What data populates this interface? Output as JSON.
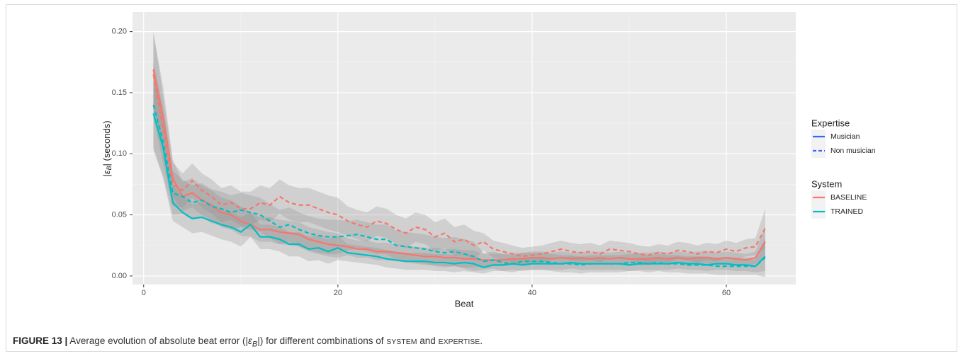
{
  "chart_data": {
    "type": "line",
    "ylabel": [
      "|",
      "ε",
      "B",
      "| (seconds)"
    ],
    "xlabel": "Beat",
    "x": [
      1,
      2,
      3,
      4,
      5,
      6,
      7,
      8,
      9,
      10,
      11,
      12,
      13,
      14,
      15,
      16,
      17,
      18,
      19,
      20,
      21,
      22,
      23,
      24,
      25,
      26,
      27,
      28,
      29,
      30,
      31,
      32,
      33,
      34,
      35,
      36,
      37,
      38,
      39,
      40,
      41,
      42,
      43,
      44,
      45,
      46,
      47,
      48,
      49,
      50,
      51,
      52,
      53,
      54,
      55,
      56,
      57,
      58,
      59,
      60,
      61,
      62,
      63,
      64
    ],
    "xlim": [
      -1.15,
      67.15
    ],
    "ylim": [
      -0.007,
      0.216
    ],
    "xticks": [
      0,
      20,
      40,
      60
    ],
    "yticks": [
      {
        "value": 0,
        "label": "0.00"
      },
      {
        "value": 0.05,
        "label": "0.05"
      },
      {
        "value": 0.1,
        "label": "0.10"
      },
      {
        "value": 0.15,
        "label": "0.15"
      },
      {
        "value": 0.2,
        "label": "0.20"
      }
    ],
    "minor_xticks": [
      10,
      30,
      50
    ],
    "minor_yticks": [
      0.025,
      0.075,
      0.125,
      0.175
    ],
    "grid": true,
    "band_color": "#8c8c8c",
    "series": [
      {
        "color": "#f8766d",
        "dash": false,
        "values": [
          0.169,
          0.13,
          0.08,
          0.065,
          0.068,
          0.062,
          0.058,
          0.052,
          0.05,
          0.045,
          0.042,
          0.038,
          0.038,
          0.036,
          0.035,
          0.034,
          0.03,
          0.028,
          0.026,
          0.025,
          0.024,
          0.022,
          0.022,
          0.02,
          0.02,
          0.019,
          0.018,
          0.017,
          0.016,
          0.016,
          0.015,
          0.015,
          0.014,
          0.014,
          0.013,
          0.013,
          0.013,
          0.014,
          0.014,
          0.015,
          0.015,
          0.014,
          0.015,
          0.014,
          0.015,
          0.014,
          0.015,
          0.014,
          0.015,
          0.014,
          0.014,
          0.014,
          0.015,
          0.014,
          0.015,
          0.014,
          0.015,
          0.015,
          0.014,
          0.015,
          0.014,
          0.013,
          0.015,
          0.028
        ],
        "errors": [
          0.03,
          0.025,
          0.015,
          0.012,
          0.012,
          0.012,
          0.012,
          0.012,
          0.012,
          0.012,
          0.01,
          0.01,
          0.01,
          0.01,
          0.01,
          0.01,
          0.01,
          0.01,
          0.01,
          0.01,
          0.007,
          0.007,
          0.007,
          0.007,
          0.007,
          0.007,
          0.007,
          0.007,
          0.007,
          0.007,
          0.007,
          0.007,
          0.007,
          0.007,
          0.005,
          0.005,
          0.005,
          0.005,
          0.005,
          0.005,
          0.005,
          0.005,
          0.005,
          0.005,
          0.005,
          0.005,
          0.005,
          0.005,
          0.005,
          0.005,
          0.005,
          0.005,
          0.005,
          0.005,
          0.005,
          0.005,
          0.005,
          0.005,
          0.005,
          0.005,
          0.005,
          0.005,
          0.005,
          0.012
        ]
      },
      {
        "color": "#f8766d",
        "dash": true,
        "values": [
          0.165,
          0.12,
          0.075,
          0.07,
          0.078,
          0.07,
          0.065,
          0.058,
          0.06,
          0.055,
          0.055,
          0.06,
          0.058,
          0.065,
          0.06,
          0.058,
          0.058,
          0.055,
          0.052,
          0.05,
          0.045,
          0.042,
          0.04,
          0.045,
          0.043,
          0.038,
          0.035,
          0.04,
          0.038,
          0.032,
          0.035,
          0.028,
          0.03,
          0.025,
          0.028,
          0.022,
          0.02,
          0.018,
          0.016,
          0.017,
          0.018,
          0.02,
          0.022,
          0.02,
          0.019,
          0.02,
          0.018,
          0.022,
          0.021,
          0.02,
          0.018,
          0.017,
          0.019,
          0.018,
          0.021,
          0.02,
          0.018,
          0.02,
          0.019,
          0.022,
          0.02,
          0.023,
          0.024,
          0.039
        ],
        "errors": [
          0.035,
          0.028,
          0.018,
          0.014,
          0.014,
          0.014,
          0.014,
          0.014,
          0.014,
          0.014,
          0.014,
          0.014,
          0.014,
          0.014,
          0.014,
          0.014,
          0.014,
          0.014,
          0.014,
          0.014,
          0.012,
          0.012,
          0.012,
          0.012,
          0.012,
          0.012,
          0.012,
          0.012,
          0.012,
          0.012,
          0.012,
          0.012,
          0.012,
          0.012,
          0.007,
          0.007,
          0.007,
          0.007,
          0.007,
          0.007,
          0.007,
          0.007,
          0.007,
          0.007,
          0.007,
          0.007,
          0.007,
          0.007,
          0.007,
          0.007,
          0.007,
          0.007,
          0.007,
          0.007,
          0.007,
          0.007,
          0.007,
          0.007,
          0.007,
          0.007,
          0.007,
          0.007,
          0.007,
          0.016
        ]
      },
      {
        "color": "#00bfc4",
        "dash": false,
        "values": [
          0.133,
          0.105,
          0.06,
          0.052,
          0.047,
          0.048,
          0.045,
          0.042,
          0.04,
          0.036,
          0.042,
          0.032,
          0.032,
          0.03,
          0.026,
          0.026,
          0.022,
          0.023,
          0.02,
          0.023,
          0.019,
          0.018,
          0.017,
          0.016,
          0.014,
          0.013,
          0.012,
          0.012,
          0.012,
          0.011,
          0.011,
          0.01,
          0.011,
          0.01,
          0.007,
          0.009,
          0.009,
          0.01,
          0.009,
          0.01,
          0.01,
          0.01,
          0.01,
          0.011,
          0.01,
          0.01,
          0.01,
          0.01,
          0.01,
          0.009,
          0.01,
          0.01,
          0.01,
          0.01,
          0.011,
          0.01,
          0.01,
          0.009,
          0.01,
          0.01,
          0.009,
          0.009,
          0.008,
          0.016
        ],
        "errors": [
          0.03,
          0.025,
          0.015,
          0.012,
          0.012,
          0.012,
          0.012,
          0.012,
          0.012,
          0.012,
          0.01,
          0.01,
          0.01,
          0.01,
          0.01,
          0.01,
          0.01,
          0.01,
          0.01,
          0.01,
          0.007,
          0.007,
          0.007,
          0.007,
          0.007,
          0.007,
          0.007,
          0.007,
          0.007,
          0.007,
          0.007,
          0.007,
          0.007,
          0.007,
          0.005,
          0.005,
          0.005,
          0.005,
          0.005,
          0.005,
          0.005,
          0.005,
          0.005,
          0.005,
          0.005,
          0.005,
          0.005,
          0.005,
          0.005,
          0.005,
          0.005,
          0.005,
          0.005,
          0.005,
          0.005,
          0.005,
          0.005,
          0.005,
          0.005,
          0.005,
          0.005,
          0.005,
          0.005,
          0.012
        ]
      },
      {
        "color": "#00bfc4",
        "dash": true,
        "values": [
          0.14,
          0.11,
          0.068,
          0.065,
          0.06,
          0.062,
          0.057,
          0.055,
          0.052,
          0.054,
          0.052,
          0.05,
          0.045,
          0.04,
          0.042,
          0.038,
          0.035,
          0.033,
          0.032,
          0.032,
          0.033,
          0.034,
          0.032,
          0.03,
          0.03,
          0.025,
          0.024,
          0.023,
          0.022,
          0.02,
          0.019,
          0.02,
          0.018,
          0.016,
          0.012,
          0.013,
          0.011,
          0.01,
          0.012,
          0.012,
          0.012,
          0.011,
          0.01,
          0.01,
          0.009,
          0.01,
          0.01,
          0.01,
          0.01,
          0.011,
          0.011,
          0.01,
          0.011,
          0.01,
          0.01,
          0.009,
          0.009,
          0.009,
          0.008,
          0.008,
          0.008,
          0.008,
          0.008,
          0.015
        ],
        "errors": [
          0.035,
          0.028,
          0.018,
          0.014,
          0.014,
          0.014,
          0.014,
          0.014,
          0.014,
          0.014,
          0.014,
          0.014,
          0.014,
          0.014,
          0.014,
          0.014,
          0.014,
          0.014,
          0.014,
          0.014,
          0.012,
          0.012,
          0.012,
          0.012,
          0.012,
          0.012,
          0.012,
          0.012,
          0.012,
          0.012,
          0.012,
          0.012,
          0.012,
          0.012,
          0.007,
          0.007,
          0.007,
          0.007,
          0.007,
          0.007,
          0.007,
          0.007,
          0.007,
          0.007,
          0.007,
          0.007,
          0.007,
          0.007,
          0.007,
          0.007,
          0.007,
          0.007,
          0.007,
          0.007,
          0.007,
          0.007,
          0.007,
          0.007,
          0.007,
          0.007,
          0.007,
          0.007,
          0.007,
          0.016
        ]
      }
    ],
    "legends": [
      {
        "title": "Expertise",
        "entries": [
          {
            "label": "Musician",
            "color": "#3366ff",
            "dash": false
          },
          {
            "label": "Non musician",
            "color": "#3366ff",
            "dash": true
          }
        ]
      },
      {
        "title": "System",
        "entries": [
          {
            "label": "BASELINE",
            "color": "#f8766d",
            "dash": false
          },
          {
            "label": "TRAINED",
            "color": "#00bfc4",
            "dash": false
          }
        ]
      }
    ],
    "caption": [
      "FIGURE 13 |",
      " Average evolution of absolute beat error (|",
      "ε",
      "B",
      "|) for different combinations of ",
      "SYSTEM",
      " and ",
      "EXPERTISE",
      "."
    ]
  }
}
